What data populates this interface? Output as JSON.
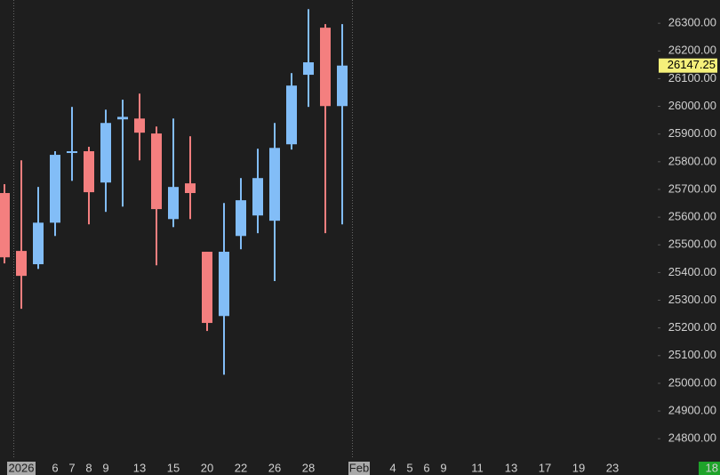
{
  "chart_data": {
    "type": "candlestick",
    "categories": [
      null,
      "2026",
      null,
      "6",
      "7",
      "8",
      "9",
      null,
      "13",
      null,
      "15",
      null,
      "20",
      null,
      "22",
      null,
      "26",
      null,
      "28",
      null,
      null,
      "Feb",
      null,
      "4",
      "5",
      "6",
      "9",
      null,
      "11",
      null,
      "13",
      null,
      "17",
      null,
      "19",
      null,
      "23"
    ],
    "open": [
      25687,
      25478,
      25430,
      25580,
      25832,
      25838,
      25725,
      25953,
      25956,
      25902,
      25593,
      25722,
      25475,
      25243,
      25532,
      25606,
      25587,
      25863,
      26114,
      26284,
      26001,
      null,
      null,
      null,
      null,
      null,
      null,
      null,
      null,
      null,
      null,
      null,
      null,
      null,
      null,
      null,
      null
    ],
    "high": [
      25719,
      25805,
      25709,
      25838,
      25998,
      25854,
      25988,
      26024,
      26046,
      25927,
      25956,
      25892,
      25475,
      25651,
      25741,
      25847,
      25940,
      26120,
      26351,
      26297,
      26297,
      null,
      null,
      null,
      null,
      null,
      null,
      null,
      null,
      null,
      null,
      null,
      null,
      null,
      null,
      null,
      null
    ],
    "low": [
      25433,
      25269,
      25413,
      25532,
      25731,
      25574,
      25619,
      25638,
      25805,
      25426,
      25564,
      25593,
      25189,
      25031,
      25484,
      25542,
      25369,
      25844,
      25998,
      25542,
      25574,
      null,
      null,
      null,
      null,
      null,
      null,
      null,
      null,
      null,
      null,
      null,
      null,
      null,
      null,
      null,
      null
    ],
    "close": [
      25455,
      25388,
      25580,
      25825,
      25838,
      25690,
      25940,
      25962,
      25905,
      25629,
      25709,
      25687,
      25218,
      25475,
      25661,
      25741,
      25850,
      26075,
      26159,
      26001,
      26147.25,
      null,
      null,
      null,
      null,
      null,
      null,
      null,
      null,
      null,
      null,
      null,
      null,
      null,
      null,
      null,
      null
    ],
    "up_color": "#82bdf7",
    "down_color": "#f47f7f",
    "ylim": [
      24730,
      26384
    ],
    "yticks": [
      {
        "value": 24800,
        "label": "24800.00"
      },
      {
        "value": 24900,
        "label": "24900.00"
      },
      {
        "value": 25000,
        "label": "25000.00"
      },
      {
        "value": 25100,
        "label": "25100.00"
      },
      {
        "value": 25200,
        "label": "25200.00"
      },
      {
        "value": 25300,
        "label": "25300.00"
      },
      {
        "value": 25400,
        "label": "25400.00"
      },
      {
        "value": 25500,
        "label": "25500.00"
      },
      {
        "value": 25600,
        "label": "25600.00"
      },
      {
        "value": 25700,
        "label": "25700.00"
      },
      {
        "value": 25800,
        "label": "25800.00"
      },
      {
        "value": 25900,
        "label": "25900.00"
      },
      {
        "value": 26000,
        "label": "26000.00"
      },
      {
        "value": 26100,
        "label": "26100.00"
      },
      {
        "value": 26200,
        "label": "26200.00"
      },
      {
        "value": 26300,
        "label": "26300.00"
      }
    ],
    "last_price": 26147.25,
    "corner_badge": "18"
  }
}
